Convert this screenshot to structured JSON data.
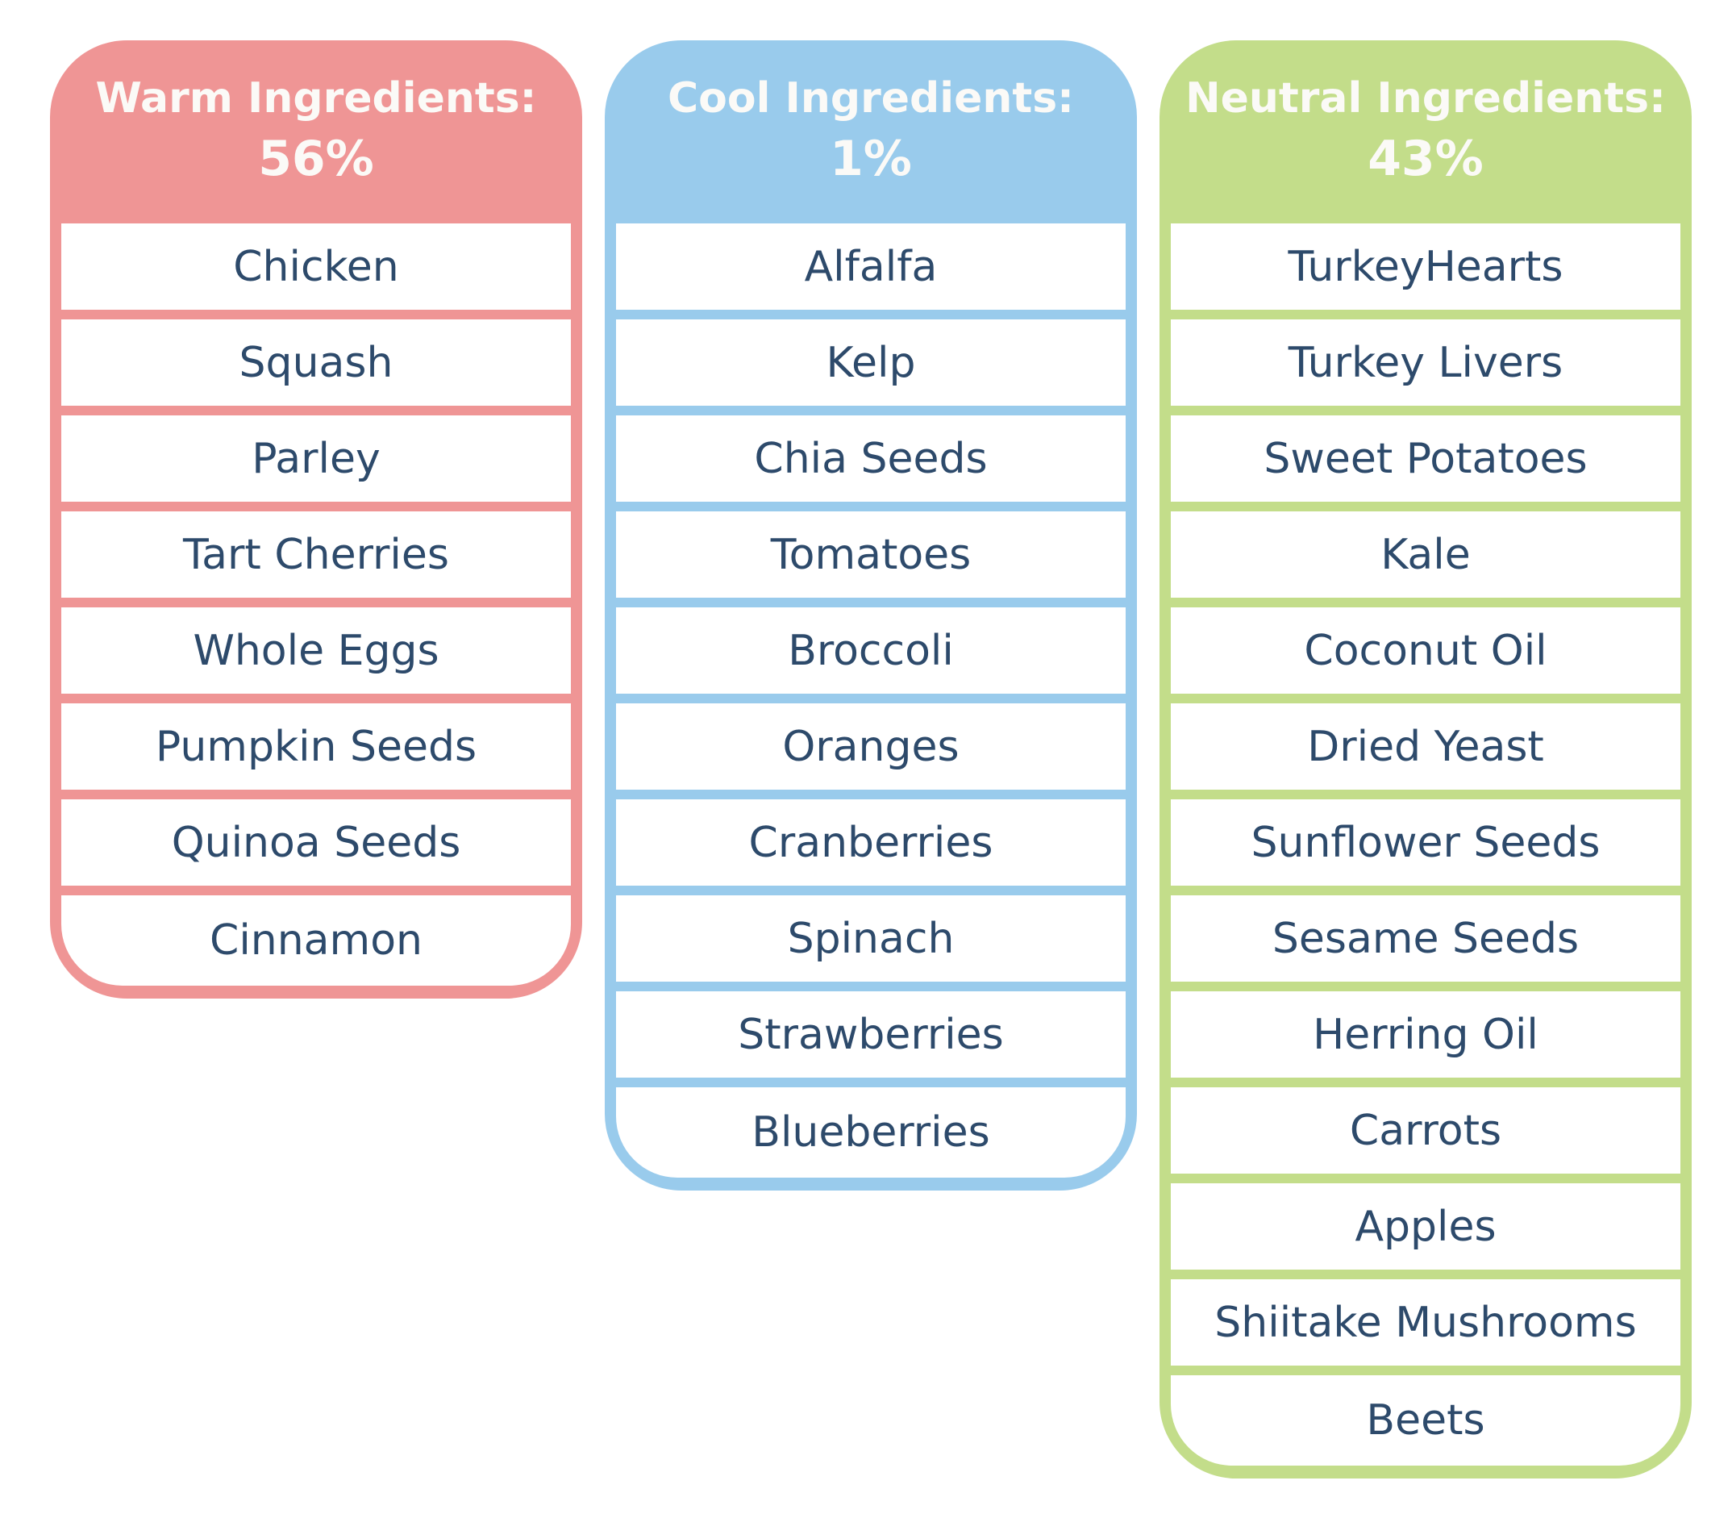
{
  "columns": [
    {
      "title": "Warm Ingredients:",
      "percent": "56%",
      "color": "#ef9595",
      "items": [
        "Chicken",
        "Squash",
        "Parley",
        "Tart Cherries",
        "Whole Eggs",
        "Pumpkin Seeds",
        "Quinoa Seeds",
        "Cinnamon"
      ]
    },
    {
      "title": "Cool Ingredients:",
      "percent": "1%",
      "color": "#99cbec",
      "items": [
        "Alfalfa",
        "Kelp",
        "Chia Seeds",
        "Tomatoes",
        "Broccoli",
        "Oranges",
        "Cranberries",
        "Spinach",
        "Strawberries",
        "Blueberries"
      ]
    },
    {
      "title": "Neutral Ingredients:",
      "percent": "43%",
      "color": "#c3dd8a",
      "items": [
        "TurkeyHearts",
        "Turkey Livers",
        "Sweet Potatoes",
        "Kale",
        "Coconut Oil",
        "Dried Yeast",
        "Sunflower Seeds",
        "Sesame Seeds",
        "Herring Oil",
        "Carrots",
        "Apples",
        "Shiitake Mushrooms",
        "Beets"
      ]
    }
  ]
}
